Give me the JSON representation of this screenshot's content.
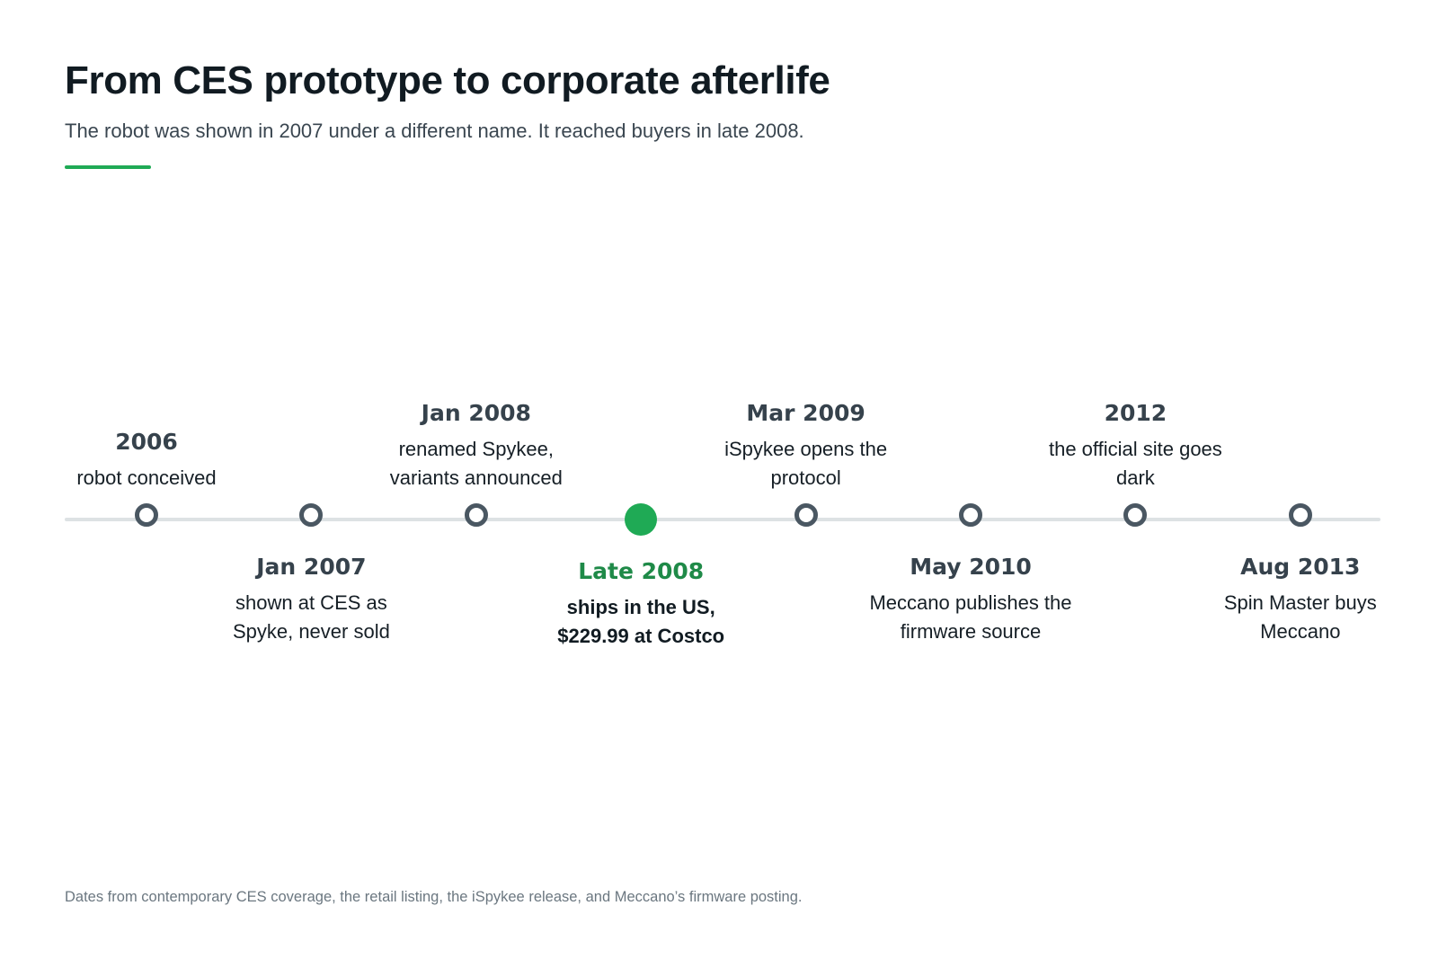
{
  "header": {
    "title": "From CES prototype to corporate afterlife",
    "subtitle": "The robot was shown in 2007 under a different name. It reached buyers in late 2008."
  },
  "timeline": {
    "events": [
      {
        "date": "2006",
        "text": "robot conceived",
        "highlight": false
      },
      {
        "date": "Jan 2007",
        "text": "shown at CES as Spyke, never sold",
        "highlight": false
      },
      {
        "date": "Jan 2008",
        "text": "renamed Spykee, variants announced",
        "highlight": false
      },
      {
        "date": "Late 2008",
        "text": "ships in the US, $229.99 at Costco",
        "highlight": true
      },
      {
        "date": "Mar 2009",
        "text": "iSpykee opens the protocol",
        "highlight": false
      },
      {
        "date": "May 2010",
        "text": "Meccano publishes the firmware source",
        "highlight": false
      },
      {
        "date": "2012",
        "text": "the official site goes dark",
        "highlight": false
      },
      {
        "date": "Aug 2013",
        "text": "Spin Master buys Meccano",
        "highlight": false
      }
    ]
  },
  "colors": {
    "accent": "#1faa55",
    "accent_text": "#1f8a48",
    "marker": "#4a5762",
    "axis": "#dde2e4"
  },
  "footnote": "Dates from contemporary CES coverage, the retail listing, the iSpykee release, and Meccano’s firmware posting."
}
